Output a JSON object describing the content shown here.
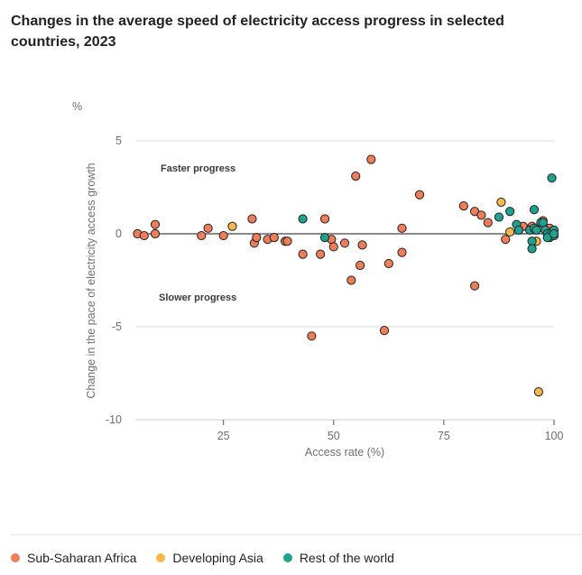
{
  "title": "Changes in the average speed of electricity access progress in selected countries, 2023",
  "colors": {
    "sub_saharan_africa": "#ef7d57",
    "developing_asia": "#f6b84a",
    "rest_of_world": "#1fa38f",
    "point_stroke": "#222222",
    "grid": "#dcdcdc",
    "zero_line": "#444444"
  },
  "legend": [
    {
      "label": "Sub-Saharan Africa",
      "color": "#ef7d57"
    },
    {
      "label": "Developing Asia",
      "color": "#f6b84a"
    },
    {
      "label": "Rest of the world",
      "color": "#1fa38f"
    }
  ],
  "chart_data": {
    "type": "scatter",
    "title": "Changes in the average speed of electricity access progress in selected countries, 2023",
    "xlabel": "Access rate (%)",
    "ylabel": "Change in the pace of electricity access growth",
    "yunit": "%",
    "xlim": [
      0,
      100
    ],
    "ylim": [
      -10,
      5
    ],
    "xticks": [
      25,
      50,
      75,
      100
    ],
    "yticks": [
      5,
      0,
      -5,
      -10
    ],
    "grid": true,
    "legend_position": "bottom",
    "annotations": [
      "Faster progress",
      "Slower progress"
    ],
    "series": [
      {
        "name": "Sub-Saharan Africa",
        "color": "#ef7d57",
        "points": [
          [
            5.5,
            0
          ],
          [
            7,
            -0.1
          ],
          [
            9.5,
            0.5
          ],
          [
            9.5,
            0
          ],
          [
            20,
            -0.1
          ],
          [
            21.5,
            0.3
          ],
          [
            25,
            -0.1
          ],
          [
            31.5,
            0.8
          ],
          [
            32,
            -0.5
          ],
          [
            32.5,
            -0.2
          ],
          [
            35,
            -0.3
          ],
          [
            36.5,
            -0.2
          ],
          [
            39,
            -0.4
          ],
          [
            39.5,
            -0.4
          ],
          [
            43,
            -1.1
          ],
          [
            45,
            -5.5
          ],
          [
            47,
            -1.1
          ],
          [
            48,
            0.8
          ],
          [
            49.5,
            -0.3
          ],
          [
            50,
            -0.7
          ],
          [
            52.5,
            -0.5
          ],
          [
            54,
            -2.5
          ],
          [
            55,
            3.1
          ],
          [
            56,
            -1.7
          ],
          [
            56.5,
            -0.6
          ],
          [
            58.5,
            4.0
          ],
          [
            61.5,
            -5.2
          ],
          [
            62.5,
            -1.6
          ],
          [
            65.5,
            0.3
          ],
          [
            65.5,
            -1.0
          ],
          [
            69.5,
            2.1
          ],
          [
            79.5,
            1.5
          ],
          [
            82,
            1.2
          ],
          [
            82,
            -2.8
          ],
          [
            83.5,
            1.0
          ],
          [
            85,
            0.6
          ],
          [
            89,
            -0.3
          ],
          [
            93,
            0.4
          ],
          [
            95,
            0.4
          ],
          [
            97.5,
            0.7
          ],
          [
            99,
            0.3
          ]
        ]
      },
      {
        "name": "Developing Asia",
        "color": "#f6b84a",
        "points": [
          [
            27,
            0.4
          ],
          [
            88,
            1.7
          ],
          [
            90,
            0.1
          ],
          [
            96,
            -0.4
          ],
          [
            96.5,
            -8.5
          ],
          [
            99,
            -0.1
          ]
        ]
      },
      {
        "name": "Rest of the world",
        "color": "#1fa38f",
        "points": [
          [
            43,
            0.8
          ],
          [
            48,
            -0.2
          ],
          [
            87.5,
            0.9
          ],
          [
            90,
            1.2
          ],
          [
            91.5,
            0.5
          ],
          [
            92,
            0.2
          ],
          [
            94.5,
            0.2
          ],
          [
            95,
            -0.4
          ],
          [
            95,
            -0.8
          ],
          [
            95.5,
            1.3
          ],
          [
            95.5,
            0.3
          ],
          [
            96,
            0.2
          ],
          [
            97,
            0.6
          ],
          [
            97.5,
            0.6
          ],
          [
            98,
            0.2
          ],
          [
            98.5,
            0
          ],
          [
            99,
            -0.2
          ],
          [
            99.5,
            3.0
          ],
          [
            99.5,
            0.1
          ],
          [
            100,
            0.2
          ],
          [
            100,
            -0.1
          ],
          [
            98.5,
            -0.2
          ],
          [
            100,
            0
          ]
        ]
      }
    ]
  }
}
